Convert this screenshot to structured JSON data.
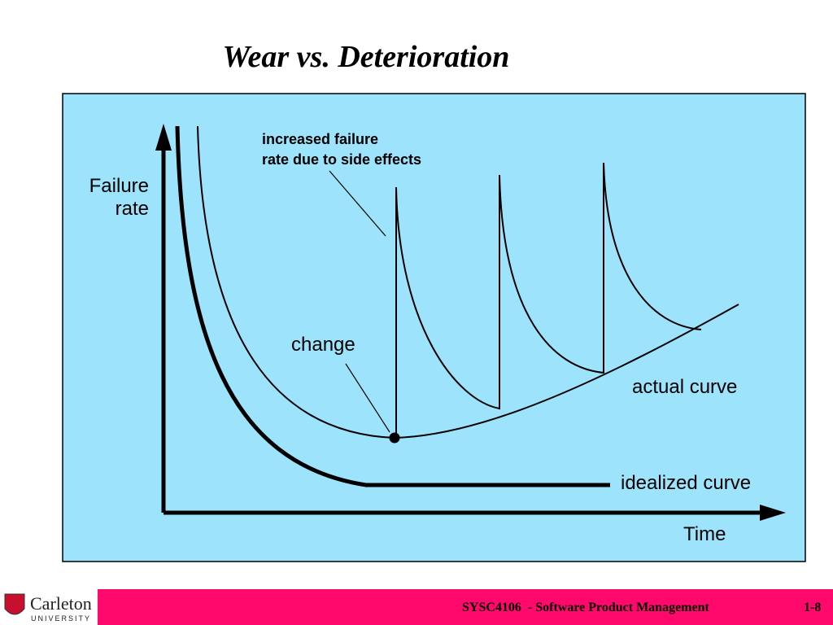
{
  "title": "Wear vs. Deterioration",
  "diagram": {
    "y_axis_label": {
      "lines": [
        "Failure",
        "rate"
      ]
    },
    "x_axis_label": "Time",
    "annotations": {
      "side_effects": {
        "lines": [
          "increased failure",
          "rate due to side effects"
        ]
      },
      "change": "change",
      "actual_curve": "actual curve",
      "idealized_curve": "idealized curve"
    }
  },
  "footer": {
    "logo": {
      "name": "Carleton",
      "subtitle": "UNIVERSITY"
    },
    "course": "SYSC4106  - Software Product Management",
    "page": "1-8"
  }
}
